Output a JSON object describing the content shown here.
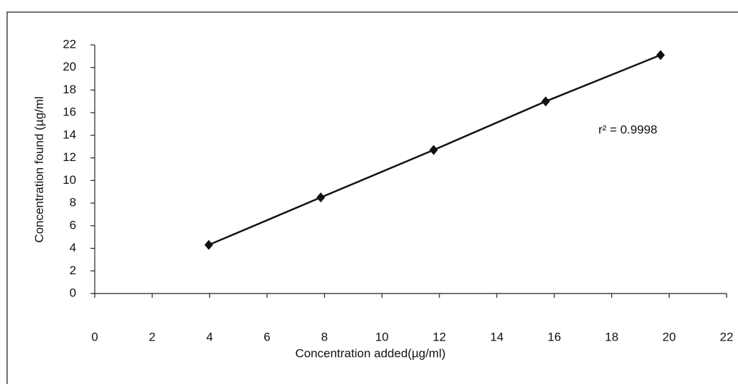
{
  "chart_data": {
    "type": "line",
    "x_label": "Concentration added(µg/ml)",
    "y_label": "Concentration found (µg/ml",
    "annotation": "r² = 0.9998",
    "x": [
      3.97,
      7.87,
      11.8,
      15.7,
      19.7
    ],
    "series": [
      {
        "color": "#111111",
        "values": [
          4.3,
          8.5,
          12.7,
          17.0,
          21.1
        ]
      }
    ],
    "xlim": [
      0,
      22
    ],
    "xticks": [
      0,
      2,
      4,
      6,
      8,
      10,
      12,
      14,
      16,
      18,
      20,
      22
    ],
    "ylim": [
      0,
      22
    ],
    "yticks": [
      0,
      2,
      4,
      6,
      8,
      10,
      12,
      14,
      16,
      18,
      20,
      22
    ],
    "markers": true
  }
}
